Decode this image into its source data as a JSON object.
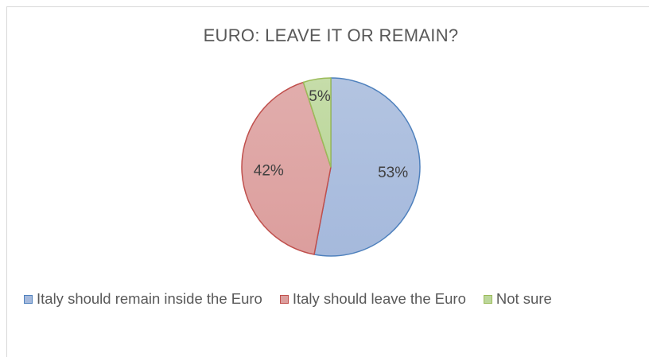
{
  "chart_data": {
    "type": "pie",
    "title": "EURO: LEAVE IT OR REMAIN?",
    "categories": [
      "Italy should remain inside the Euro",
      "Italy should leave the Euro",
      "Not sure"
    ],
    "values": [
      53,
      42,
      5
    ],
    "data_labels": [
      "53%",
      "42%",
      "5%"
    ],
    "colors": {
      "fill": [
        "#a5b9dc",
        "#dc9e9d",
        "#bcd79b"
      ],
      "stroke": [
        "#4f81bd",
        "#c0504d",
        "#9bbb59"
      ]
    },
    "legend_position": "bottom",
    "start_angle": "12 o'clock, clockwise"
  }
}
